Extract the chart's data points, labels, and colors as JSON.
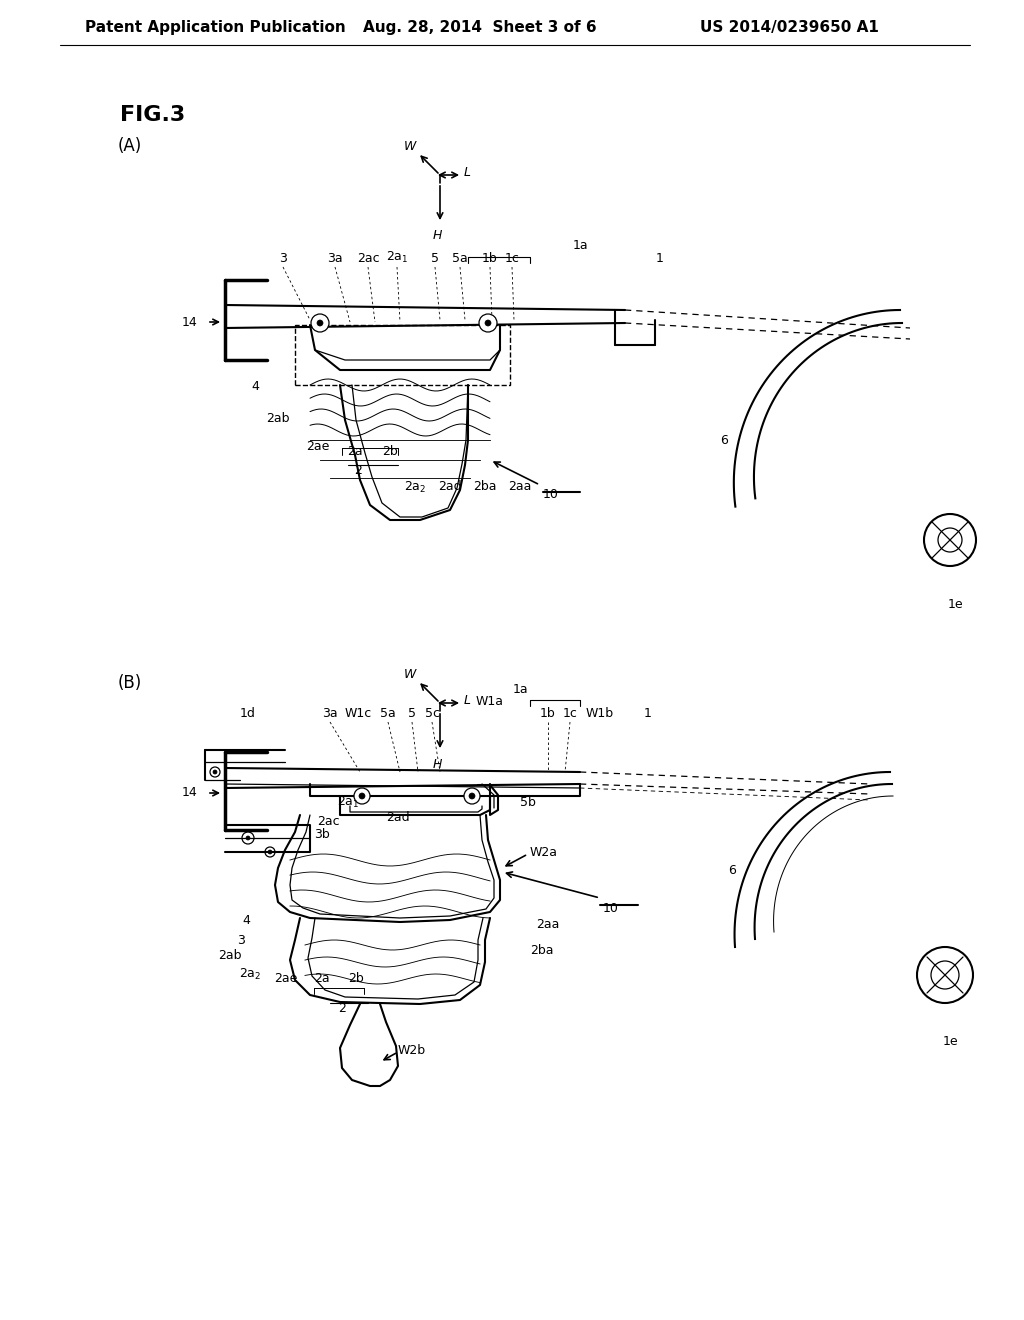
{
  "bg_color": "#ffffff",
  "header_left": "Patent Application Publication",
  "header_center": "Aug. 28, 2014  Sheet 3 of 6",
  "header_right": "US 2014/0239650 A1",
  "fig_label": "FIG.3",
  "sub_A": "(A)",
  "sub_B": "(B)",
  "lw_main": 1.5,
  "lw_thin": 0.9,
  "lw_thick": 2.5,
  "fs_label": 9,
  "fs_title": 16,
  "fs_sub": 12,
  "fs_header": 11
}
